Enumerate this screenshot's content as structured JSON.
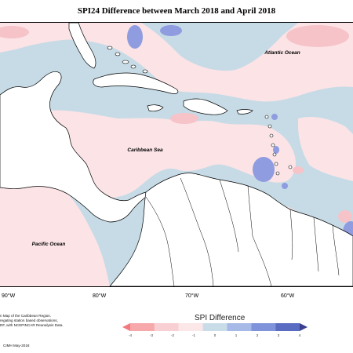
{
  "title": "SPI24 Difference between March 2018 and April 2018",
  "ocean_labels": {
    "atlantic": "Atlantic Ocean",
    "caribbean": "Caribbean Sea",
    "pacific": "Pacific Ocean"
  },
  "longitude_labels": [
    "90°W",
    "80°W",
    "70°W",
    "60°W"
  ],
  "credit_lines": [
    "n Map of the Caribbean Region.",
    "regating station based observations,",
    "DF, with NCEPINCAR Reanalysis Data."
  ],
  "credit_footer": "CIMH May-2018",
  "legend": {
    "title": "SPI Difference",
    "ticks": [
      "-4",
      "-3",
      "-2",
      "-1",
      "0",
      "1",
      "2",
      "3",
      "4"
    ],
    "colors": [
      "#f4797f",
      "#f6a8ab",
      "#f8cfd2",
      "#fbe6e8",
      "#c9dde8",
      "#a7b9e6",
      "#7e93d9",
      "#5a6cc2",
      "#3a3f8f"
    ]
  },
  "colors": {
    "wet_light": "#c6dbe6",
    "wet_strong": "#8f9ce0",
    "dry_light": "#fbe3e6",
    "dry_medium": "#f6c3c9",
    "land": "#ffffff",
    "coastline": "#000000"
  }
}
